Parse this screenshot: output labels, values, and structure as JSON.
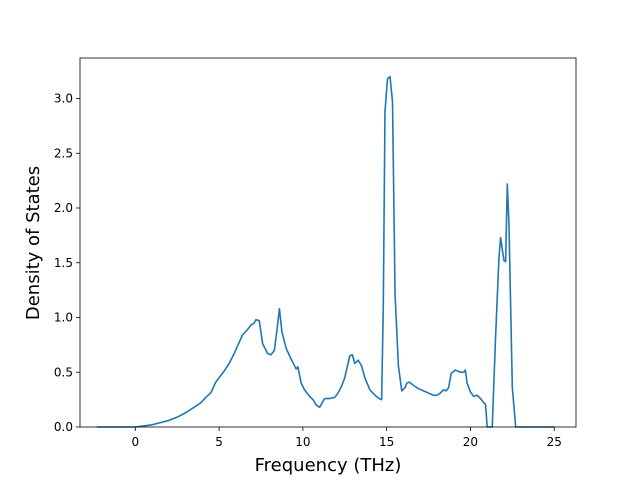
{
  "chart_data": {
    "type": "line",
    "title": "",
    "xlabel": "Frequency (THz)",
    "ylabel": "Density of States",
    "xlim": [
      -3.3,
      26.3
    ],
    "ylim": [
      0,
      3.37
    ],
    "grid": false,
    "legend": "none",
    "x_ticks": [
      0,
      5,
      10,
      15,
      20,
      25
    ],
    "x_tick_labels": [
      "0",
      "5",
      "10",
      "15",
      "20",
      "25"
    ],
    "y_ticks": [
      0.0,
      0.5,
      1.0,
      1.5,
      2.0,
      2.5,
      3.0
    ],
    "y_tick_labels": [
      "0.0",
      "0.5",
      "1.0",
      "1.5",
      "2.0",
      "2.5",
      "3.0"
    ],
    "series": [
      {
        "color": "#1f77b4",
        "x": [
          -2.3,
          -1.5,
          -0.5,
          0.0,
          0.5,
          1.0,
          1.5,
          2.0,
          2.5,
          3.0,
          3.5,
          3.9,
          4.2,
          4.5,
          4.8,
          5.0,
          5.3,
          5.6,
          5.9,
          6.1,
          6.4,
          6.7,
          6.9,
          7.1,
          7.2,
          7.4,
          7.6,
          7.9,
          8.1,
          8.3,
          8.45,
          8.6,
          8.75,
          9.0,
          9.3,
          9.5,
          9.6,
          9.7,
          9.9,
          10.1,
          10.4,
          10.6,
          10.8,
          11.0,
          11.3,
          11.6,
          11.9,
          12.1,
          12.3,
          12.5,
          12.8,
          12.95,
          13.1,
          13.3,
          13.5,
          13.7,
          14.0,
          14.3,
          14.55,
          14.7,
          14.8,
          14.9,
          15.05,
          15.2,
          15.35,
          15.5,
          15.7,
          15.9,
          16.1,
          16.2,
          16.35,
          16.6,
          16.9,
          17.2,
          17.5,
          17.8,
          18.0,
          18.2,
          18.4,
          18.55,
          18.7,
          18.85,
          19.1,
          19.4,
          19.6,
          19.7,
          19.8,
          20.0,
          20.2,
          20.4,
          20.6,
          20.8,
          20.9,
          21.0,
          21.3,
          21.5,
          21.7,
          21.8,
          22.0,
          22.1,
          22.2,
          22.3,
          22.5,
          22.7,
          22.8,
          23.0,
          24.0,
          25.0
        ],
        "y": [
          0.0,
          0.0,
          0.0,
          0.0,
          0.01,
          0.02,
          0.04,
          0.06,
          0.09,
          0.13,
          0.18,
          0.22,
          0.27,
          0.31,
          0.41,
          0.45,
          0.51,
          0.58,
          0.67,
          0.74,
          0.84,
          0.89,
          0.93,
          0.95,
          0.98,
          0.97,
          0.76,
          0.67,
          0.66,
          0.7,
          0.88,
          1.08,
          0.87,
          0.72,
          0.62,
          0.56,
          0.53,
          0.55,
          0.4,
          0.34,
          0.28,
          0.25,
          0.2,
          0.18,
          0.26,
          0.26,
          0.27,
          0.31,
          0.37,
          0.45,
          0.65,
          0.66,
          0.58,
          0.61,
          0.56,
          0.45,
          0.34,
          0.29,
          0.26,
          0.25,
          1.1,
          2.88,
          3.18,
          3.2,
          2.97,
          1.22,
          0.56,
          0.33,
          0.36,
          0.4,
          0.41,
          0.38,
          0.35,
          0.33,
          0.31,
          0.29,
          0.29,
          0.31,
          0.34,
          0.33,
          0.36,
          0.49,
          0.52,
          0.5,
          0.5,
          0.52,
          0.4,
          0.32,
          0.28,
          0.29,
          0.26,
          0.22,
          0.21,
          0.0,
          0.0,
          0.82,
          1.54,
          1.73,
          1.52,
          1.51,
          2.22,
          1.85,
          0.36,
          0.0,
          0.0,
          0.0,
          0.0,
          0.0
        ]
      }
    ]
  }
}
